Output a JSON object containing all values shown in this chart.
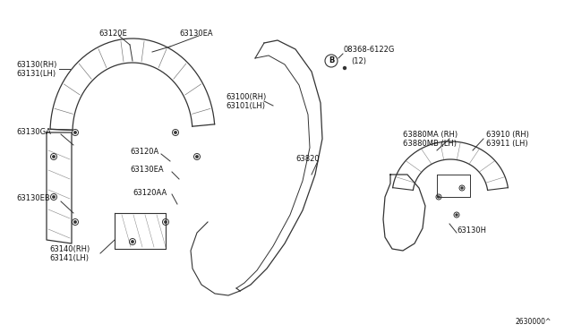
{
  "bg_color": "#ffffff",
  "line_color": "#333333",
  "text_color": "#111111",
  "font_size": 6.0,
  "font_size_small": 5.5,
  "diagram_ref": "2630000^",
  "labels": {
    "63130EA_top": "63130EA",
    "63120E": "63120E",
    "63130RH": "63130(RH)",
    "63131LH": "63131(LH)",
    "63130GA": "63130GA",
    "63130EB": "63130EB",
    "63120A": "63120A",
    "63130EA_mid": "63130EA",
    "63120AA": "63120AA",
    "63140RH": "63140(RH)",
    "63141LH": "63141(LH)",
    "63100RH": "63100(RH)",
    "63101LH": "63101(LH)",
    "63820": "63820",
    "bolt_label": "08368-6122G",
    "bolt_qty": "(12)",
    "bolt_sym": "B",
    "63880MA": "63880MA (RH)",
    "63880MB": "63880MB (LH)",
    "63910": "63910 (RH)",
    "63911": "63911 (LH)",
    "63130H": "63130H"
  }
}
